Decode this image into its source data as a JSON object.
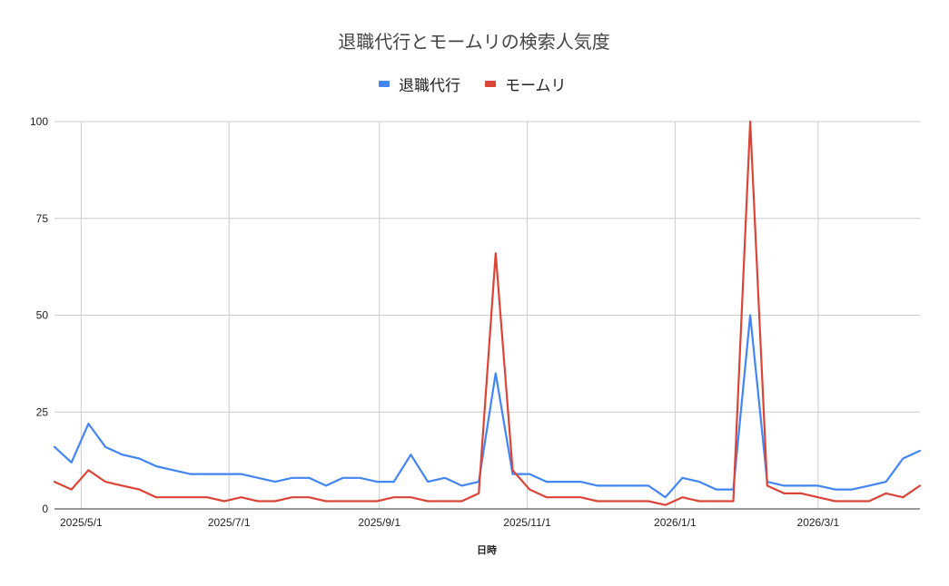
{
  "chart_data": {
    "type": "line",
    "title": "退職代行とモームリの検索人気度",
    "xlabel": "日時",
    "ylabel": "",
    "ylim": [
      0,
      100
    ],
    "yticks": [
      0,
      25,
      50,
      75,
      100
    ],
    "xtick_labels": [
      {
        "date": "2025-05-01",
        "label": "2025/5/1"
      },
      {
        "date": "2025-07-01",
        "label": "2025/7/1"
      },
      {
        "date": "2025-09-01",
        "label": "2025/9/1"
      },
      {
        "date": "2025-11-01",
        "label": "2025/11/1"
      },
      {
        "date": "2026-01-01",
        "label": "2026/1/1"
      },
      {
        "date": "2026-03-01",
        "label": "2026/3/1"
      }
    ],
    "grid": true,
    "legend_position": "top",
    "x": [
      "2025-04-20",
      "2025-04-27",
      "2025-05-04",
      "2025-05-11",
      "2025-05-18",
      "2025-05-25",
      "2025-06-01",
      "2025-06-08",
      "2025-06-15",
      "2025-06-22",
      "2025-06-29",
      "2025-07-06",
      "2025-07-13",
      "2025-07-20",
      "2025-07-27",
      "2025-08-03",
      "2025-08-10",
      "2025-08-17",
      "2025-08-24",
      "2025-08-31",
      "2025-09-07",
      "2025-09-14",
      "2025-09-21",
      "2025-09-28",
      "2025-10-05",
      "2025-10-12",
      "2025-10-19",
      "2025-10-26",
      "2025-11-02",
      "2025-11-09",
      "2025-11-16",
      "2025-11-23",
      "2025-11-30",
      "2025-12-07",
      "2025-12-14",
      "2025-12-21",
      "2025-12-28",
      "2026-01-04",
      "2026-01-11",
      "2026-01-18",
      "2026-01-25",
      "2026-02-01",
      "2026-02-08",
      "2026-02-15",
      "2026-02-22",
      "2026-03-01",
      "2026-03-08",
      "2026-03-15",
      "2026-03-22",
      "2026-03-29",
      "2026-04-05",
      "2026-04-12"
    ],
    "series": [
      {
        "name": "退職代行",
        "color": "#4285f4",
        "values": [
          16,
          12,
          22,
          16,
          14,
          13,
          11,
          10,
          9,
          9,
          9,
          9,
          8,
          7,
          8,
          8,
          6,
          8,
          8,
          7,
          7,
          14,
          7,
          8,
          6,
          7,
          35,
          9,
          9,
          7,
          7,
          7,
          6,
          6,
          6,
          6,
          3,
          8,
          7,
          5,
          5,
          50,
          7,
          6,
          6,
          6,
          5,
          5,
          6,
          7,
          13,
          15
        ]
      },
      {
        "name": "モームリ",
        "color": "#db4437",
        "values": [
          7,
          5,
          10,
          7,
          6,
          5,
          3,
          3,
          3,
          3,
          2,
          3,
          2,
          2,
          3,
          3,
          2,
          2,
          2,
          2,
          3,
          3,
          2,
          2,
          2,
          4,
          66,
          10,
          5,
          3,
          3,
          3,
          2,
          2,
          2,
          2,
          1,
          3,
          2,
          2,
          2,
          100,
          6,
          4,
          4,
          3,
          2,
          2,
          2,
          4,
          3,
          6
        ]
      }
    ]
  }
}
